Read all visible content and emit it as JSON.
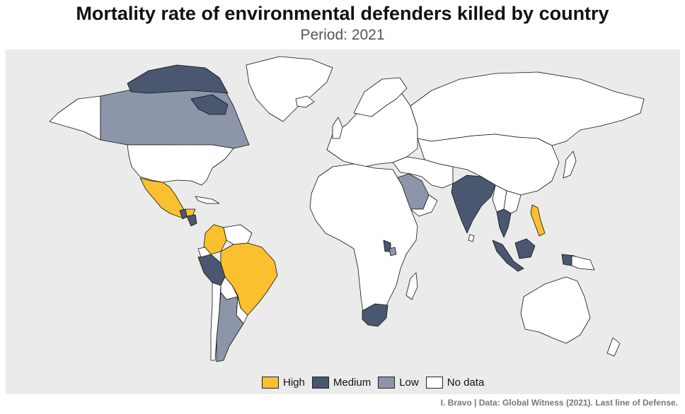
{
  "title": "Mortality rate of environmental defenders killed by country",
  "subtitle": "Period: 2021",
  "caption": "I. Bravo | Data: Global Witness (2021). Last line of Defense.",
  "colors": {
    "background": "#ebebeb",
    "high": "#fbc02d",
    "medium": "#4a5770",
    "low": "#8d95aa",
    "no_data": "#ffffff",
    "border": "#111111"
  },
  "legend": [
    {
      "label": "High",
      "category": "high"
    },
    {
      "label": "Medium",
      "category": "medium"
    },
    {
      "label": "Low",
      "category": "low"
    },
    {
      "label": "No data",
      "category": "no_data"
    }
  ]
}
